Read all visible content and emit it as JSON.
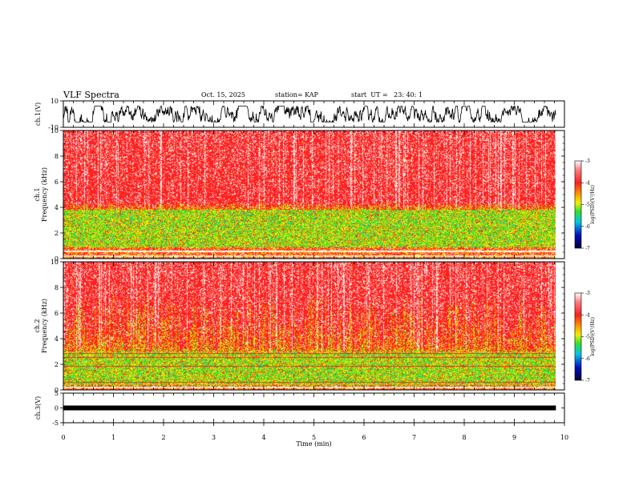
{
  "chart_data": {
    "type": "heatmap",
    "title": "VLF Spectra",
    "date": "Oct. 15, 2025",
    "station": "station= KAP",
    "start": "start  UT =   23: 40: 1",
    "xlabel": "Time (min)",
    "xlim": [
      0,
      10
    ],
    "xticks": [
      "0",
      "1",
      "2",
      "3",
      "4",
      "5",
      "6",
      "7",
      "8",
      "9",
      "10"
    ],
    "data_end_min": 9.83,
    "panels": [
      {
        "id": "ch1-waveform",
        "type": "line",
        "ylabel": "ch.1(V)",
        "ylim": [
          -10,
          10
        ],
        "yticks": [
          "10",
          "-10"
        ],
        "signal_amplitude_v": 6
      },
      {
        "id": "ch1-spectrogram",
        "type": "heatmap",
        "ylabel_top": "ch.1",
        "ylabel": "Frequency (kHz)",
        "ylim": [
          0,
          10
        ],
        "yticks": [
          "0",
          "2",
          "4",
          "6",
          "8",
          "10"
        ],
        "bands": [
          {
            "from_khz": 0,
            "to_khz": 0.9,
            "level": "mixed"
          },
          {
            "from_khz": 0.9,
            "to_khz": 3.8,
            "level": "green-yellow"
          },
          {
            "from_khz": 3.8,
            "to_khz": 10,
            "level": "red"
          }
        ],
        "colorbar": {
          "label": "log(PSD)(V²/Hz)",
          "ticks": [
            "-3",
            "-4",
            "-5",
            "-6",
            "-7"
          ],
          "range": [
            -7,
            -3
          ]
        }
      },
      {
        "id": "ch2-spectrogram",
        "type": "heatmap",
        "ylabel_top": "ch.2",
        "ylabel": "Frequency (kHz)",
        "ylim": [
          0,
          10
        ],
        "yticks": [
          "0",
          "2",
          "4",
          "6",
          "8",
          "10"
        ],
        "bands": [
          {
            "from_khz": 0,
            "to_khz": 0.4,
            "level": "mixed"
          },
          {
            "from_khz": 0.4,
            "to_khz": 3.0,
            "level": "green-yellow"
          },
          {
            "from_khz": 3.0,
            "to_khz": 10,
            "level": "red"
          }
        ],
        "colorbar": {
          "label": "log(PSD)(V²/Hz)",
          "ticks": [
            "-3",
            "-4",
            "-5",
            "-6",
            "-7"
          ],
          "range": [
            -7,
            -3
          ]
        }
      },
      {
        "id": "ch3-waveform",
        "type": "line",
        "ylabel": "ch.3(V)",
        "ylim": [
          -5,
          5
        ],
        "yticks": [
          "5",
          "0",
          "-5"
        ],
        "signal_level_v": 0
      }
    ],
    "colors": {
      "red": "#ff2020",
      "orange": "#ff9a00",
      "yellow": "#f4f000",
      "green": "#30e030",
      "cyan": "#00c8e6",
      "blue": "#0010c0",
      "navy": "#000040"
    }
  }
}
